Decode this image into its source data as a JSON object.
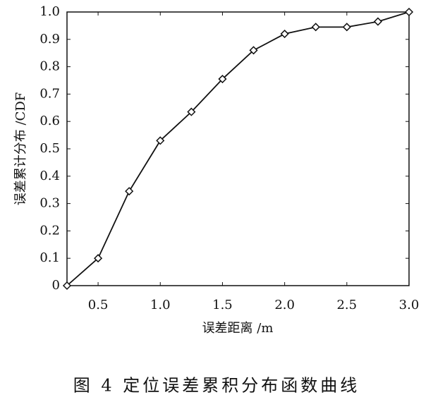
{
  "chart_data": {
    "type": "line",
    "x_label": "误差距离 /m",
    "y_label": "误差累计分布 /CDF",
    "caption": "图 4   定位误差累积分布函数曲线",
    "x": [
      0.25,
      0.5,
      0.75,
      1.0,
      1.25,
      1.5,
      1.75,
      2.0,
      2.25,
      2.5,
      2.75,
      3.0
    ],
    "series": [
      {
        "color": "#111111",
        "values": [
          0,
          0.1,
          0.345,
          0.53,
          0.635,
          0.755,
          0.86,
          0.92,
          0.945,
          0.945,
          0.965,
          1.0
        ]
      }
    ],
    "xlim": [
      0.25,
      3.0
    ],
    "xticks": [
      0.5,
      {
        "value": 1,
        "label": "1.0"
      },
      1.5,
      {
        "value": 2,
        "label": "2.0"
      },
      2.5,
      {
        "value": 3,
        "label": "3.0"
      }
    ],
    "ylim": [
      0,
      1
    ],
    "yticks": [
      0,
      0.1,
      0.2,
      0.3,
      0.4,
      0.5,
      0.6,
      0.7,
      0.8,
      0.9,
      {
        "value": 1,
        "label": "1.0"
      }
    ],
    "grid": false
  }
}
